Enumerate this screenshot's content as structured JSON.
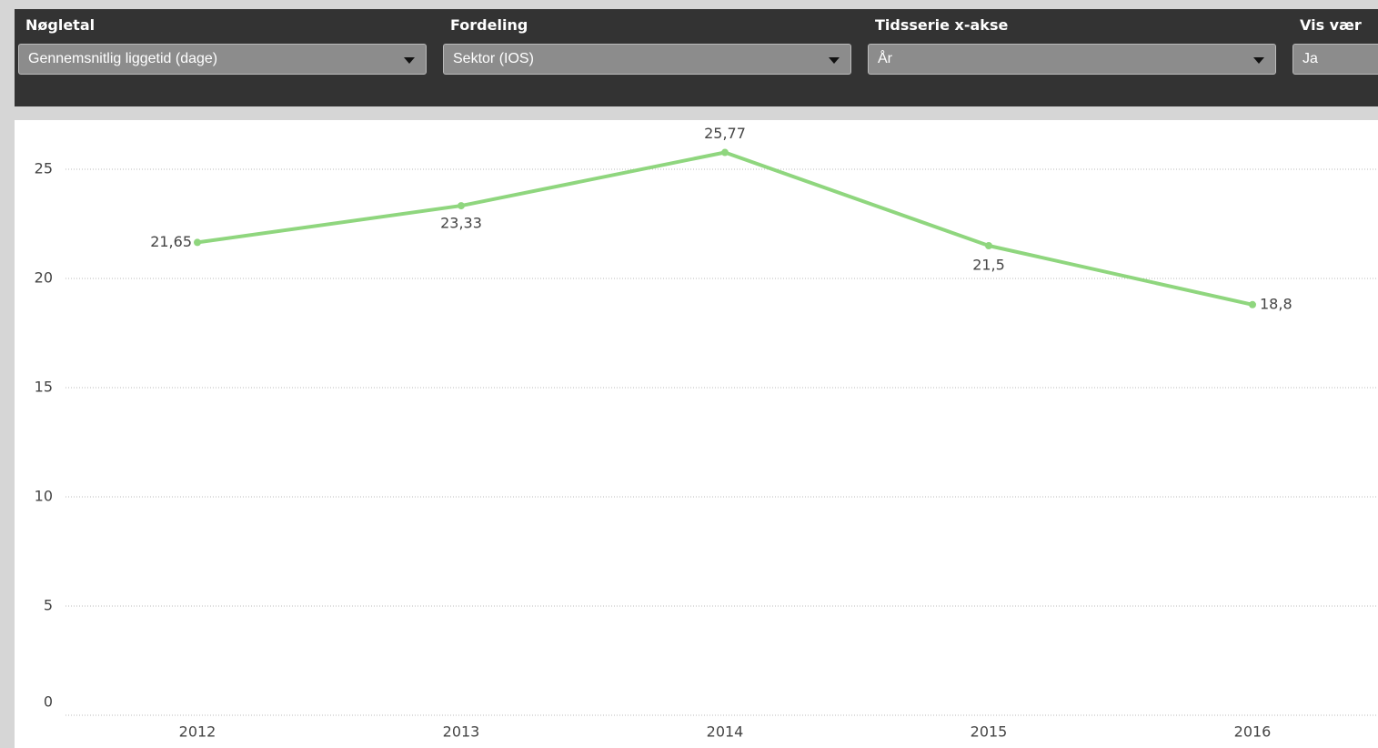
{
  "filters": [
    {
      "label": "Nøgletal",
      "value": "Gennemsnitlig liggetid (dage)"
    },
    {
      "label": "Fordeling",
      "value": "Sektor (IOS)"
    },
    {
      "label": "Tidsserie x-akse",
      "value": "År"
    },
    {
      "label": "Vis vær",
      "value": "Ja"
    }
  ],
  "chart_data": {
    "type": "line",
    "categories": [
      "2012",
      "2013",
      "2014",
      "2015",
      "2016"
    ],
    "series": [
      {
        "color": "#8fd67e",
        "values": [
          21.65,
          23.33,
          25.77,
          21.5,
          18.8
        ],
        "value_labels": [
          "21,65",
          "23,33",
          "25,77",
          "21,5",
          "18,8"
        ]
      }
    ],
    "ylim": [
      0,
      27
    ],
    "yticks": [
      0,
      5,
      10,
      15,
      20,
      25
    ],
    "grid": true
  }
}
